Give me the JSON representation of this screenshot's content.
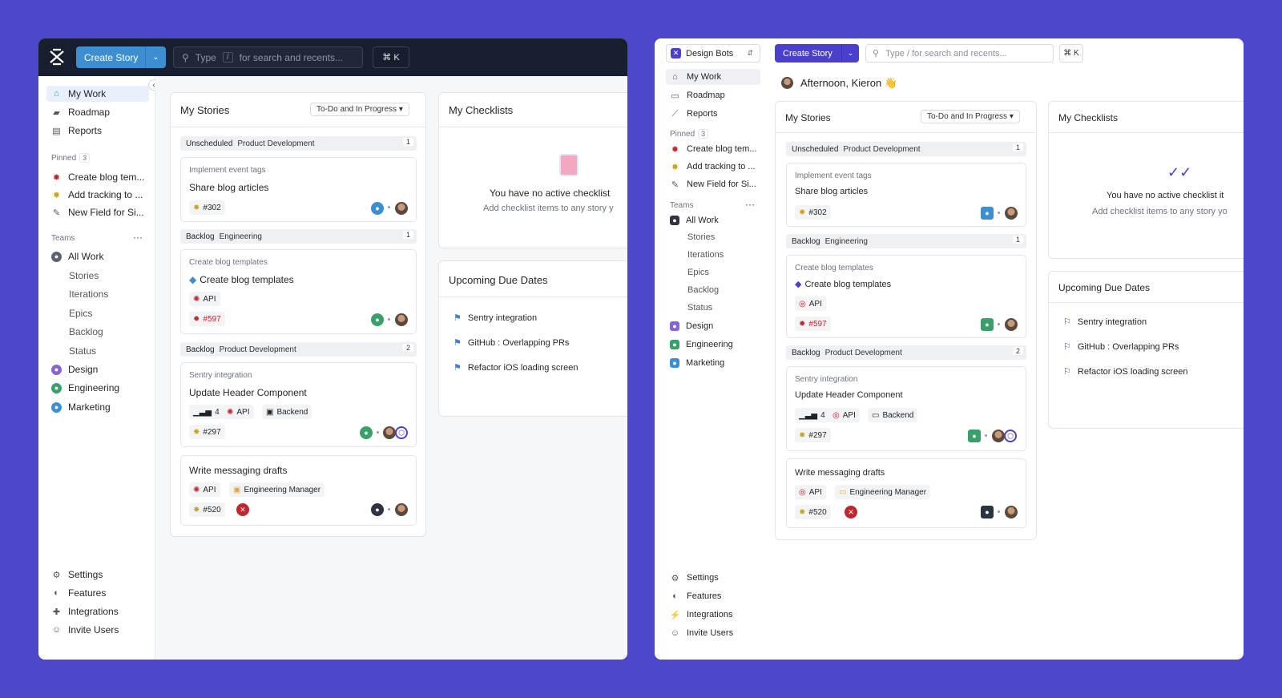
{
  "colors": {
    "background": "#4c46c8",
    "dark_topbar": "#171f2e",
    "create_blue": "#3d8ed1",
    "create_purple": "#4a3fcf"
  },
  "left": {
    "create_label": "Create Story",
    "search_type": "Type",
    "search_slash": "/",
    "search_rest": "for search and recents...",
    "kbd": "⌘ K",
    "nav": [
      "My Work",
      "Roadmap",
      "Reports"
    ],
    "pinned_label": "Pinned",
    "pinned_count": "3",
    "pinned": [
      "Create blog tem...",
      "Add tracking to ...",
      "New Field for Si..."
    ],
    "teams_label": "Teams",
    "teams_more": "···",
    "all_work": "All Work",
    "all_work_sub": [
      "Stories",
      "Iterations",
      "Epics",
      "Backlog",
      "Status"
    ],
    "teams": [
      "Design",
      "Engineering",
      "Marketing"
    ],
    "bottom": [
      "Settings",
      "Features",
      "Integrations",
      "Invite Users"
    ],
    "collapse": "‹"
  },
  "right": {
    "workspace": "Design Bots",
    "create_label": "Create Story",
    "search_placeholder": "Type / for search and recents...",
    "kbd": "⌘ K",
    "greeting": "Afternoon, Kieron 👋",
    "nav": [
      "My Work",
      "Roadmap",
      "Reports"
    ],
    "pinned_label": "Pinned",
    "pinned_count": "3",
    "pinned": [
      "Create blog tem...",
      "Add tracking to ...",
      "New Field for Si..."
    ],
    "teams_label": "Teams",
    "teams_more": "···",
    "all_work": "All Work",
    "all_work_sub": [
      "Stories",
      "Iterations",
      "Epics",
      "Backlog",
      "Status"
    ],
    "teams": [
      "Design",
      "Engineering",
      "Marketing"
    ],
    "bottom": [
      "Settings",
      "Features",
      "Integrations",
      "Invite Users"
    ]
  },
  "stories": {
    "title": "My Stories",
    "filter": "To-Do and In Progress ▾",
    "groups": [
      {
        "state": "Unscheduled",
        "team": "Product Development",
        "count": "1"
      },
      {
        "state": "Backlog",
        "team": "Engineering",
        "count": "1"
      },
      {
        "state": "Backlog",
        "team": "Product Development",
        "count": "2"
      }
    ],
    "cards": [
      {
        "epic": "Implement event tags",
        "title": "Share blog articles",
        "id": "#302"
      },
      {
        "epic": "Create blog templates",
        "title": "Create blog templates",
        "label": "API",
        "id": "#597"
      },
      {
        "epic": "Sentry integration",
        "title": "Update Header Component",
        "estimate": "4",
        "label": "API",
        "label2": "Backend",
        "id": "#297"
      },
      {
        "epic": "",
        "title": "Write messaging drafts",
        "label": "API",
        "label2": "Engineering Manager",
        "id": "#520"
      }
    ]
  },
  "checklists": {
    "title": "My Checklists",
    "empty_title": "You have no active checklist",
    "empty_title_right": "You have no active checklist it",
    "empty_sub": "Add checklist items to any story y",
    "empty_sub_right": "Add checklist items to any story yo"
  },
  "due": {
    "title": "Upcoming Due Dates",
    "items": [
      "Sentry integration",
      "GitHub : Overlapping PRs",
      "Refactor iOS loading screen"
    ]
  }
}
